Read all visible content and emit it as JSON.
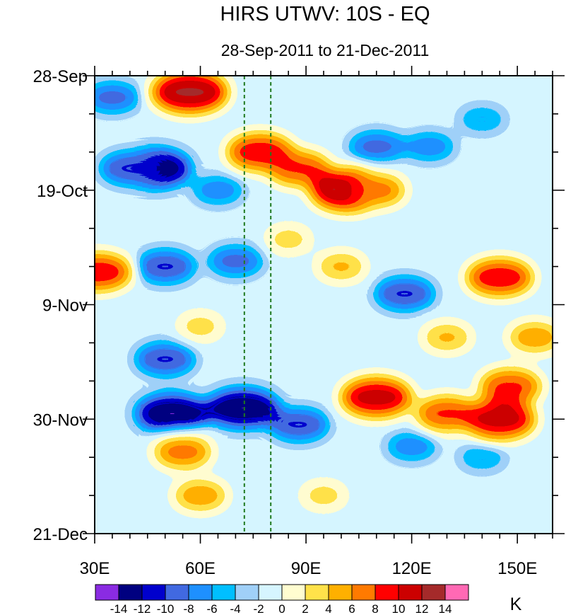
{
  "chart_data": {
    "type": "heatmap",
    "title": "HIRS UTWV: 10S - EQ",
    "subtitle": "28-Sep-2011 to 21-Dec-2011",
    "x_ticks": [
      {
        "value": 30,
        "label": "30E"
      },
      {
        "value": 60,
        "label": "60E"
      },
      {
        "value": 90,
        "label": "90E"
      },
      {
        "value": 120,
        "label": "120E"
      },
      {
        "value": 150,
        "label": "150E"
      }
    ],
    "x_range": [
      30,
      160
    ],
    "y_ticks": [
      {
        "value": 0,
        "label": "28-Sep"
      },
      {
        "value": 21,
        "label": "19-Oct"
      },
      {
        "value": 42,
        "label": "9-Nov"
      },
      {
        "value": 63,
        "label": "30-Nov"
      },
      {
        "value": 84,
        "label": "21-Dec"
      }
    ],
    "y_range": [
      0,
      84
    ],
    "y_unit": "days since 28-Sep-2011",
    "reference_lines": [
      {
        "lon": 72.5,
        "style": "dashed"
      },
      {
        "lon": 80,
        "style": "dashed"
      }
    ],
    "colorbar": {
      "unit": "K",
      "levels": [
        -14,
        -12,
        -10,
        -8,
        -6,
        -4,
        -2,
        0,
        2,
        4,
        6,
        8,
        10,
        12,
        14
      ],
      "labels": [
        "-14",
        "-12",
        "-10",
        "-8",
        "-6",
        "-4",
        "-2",
        "0",
        "2",
        "4",
        "6",
        "8",
        "10",
        "12",
        "14"
      ],
      "colors": [
        "#8a2be2",
        "#000080",
        "#0000cd",
        "#4169e1",
        "#1e90ff",
        "#00bfff",
        "#a0d0f8",
        "#d6f5ff",
        "#fffdd0",
        "#ffe24a",
        "#ffb000",
        "#ff7a00",
        "#ff0000",
        "#cc0000",
        "#a52a2a",
        "#ff69b4"
      ]
    },
    "features": [
      {
        "lon": 57,
        "day": 3,
        "value": 11
      },
      {
        "lon": 35,
        "day": 4,
        "value": -7
      },
      {
        "lon": 47,
        "day": 17,
        "value": -11
      },
      {
        "lon": 40,
        "day": 17,
        "value": -8
      },
      {
        "lon": 77,
        "day": 14,
        "value": 9
      },
      {
        "lon": 88,
        "day": 17,
        "value": 8
      },
      {
        "lon": 102,
        "day": 21,
        "value": 11
      },
      {
        "lon": 110,
        "day": 21,
        "value": 7
      },
      {
        "lon": 65,
        "day": 21,
        "value": -6
      },
      {
        "lon": 110,
        "day": 13,
        "value": -7
      },
      {
        "lon": 125,
        "day": 13,
        "value": -6
      },
      {
        "lon": 140,
        "day": 8,
        "value": -5
      },
      {
        "lon": 31,
        "day": 36,
        "value": 9
      },
      {
        "lon": 50,
        "day": 35,
        "value": -8
      },
      {
        "lon": 70,
        "day": 34,
        "value": -7
      },
      {
        "lon": 118,
        "day": 40,
        "value": -8
      },
      {
        "lon": 145,
        "day": 37,
        "value": 9
      },
      {
        "lon": 100,
        "day": 35,
        "value": 5
      },
      {
        "lon": 50,
        "day": 52,
        "value": -8
      },
      {
        "lon": 72,
        "day": 61,
        "value": -11
      },
      {
        "lon": 52,
        "day": 62,
        "value": -11
      },
      {
        "lon": 88,
        "day": 64,
        "value": -8
      },
      {
        "lon": 110,
        "day": 59,
        "value": 10
      },
      {
        "lon": 130,
        "day": 62,
        "value": 8
      },
      {
        "lon": 145,
        "day": 63,
        "value": 10
      },
      {
        "lon": 148,
        "day": 57,
        "value": 8
      },
      {
        "lon": 55,
        "day": 69,
        "value": 7
      },
      {
        "lon": 60,
        "day": 77,
        "value": 6
      },
      {
        "lon": 120,
        "day": 68,
        "value": -6
      },
      {
        "lon": 140,
        "day": 70,
        "value": -5
      },
      {
        "lon": 95,
        "day": 77,
        "value": 4
      },
      {
        "lon": 130,
        "day": 48,
        "value": 5
      },
      {
        "lon": 155,
        "day": 48,
        "value": 6
      },
      {
        "lon": 85,
        "day": 30,
        "value": 4
      },
      {
        "lon": 60,
        "day": 46,
        "value": 4
      }
    ]
  }
}
